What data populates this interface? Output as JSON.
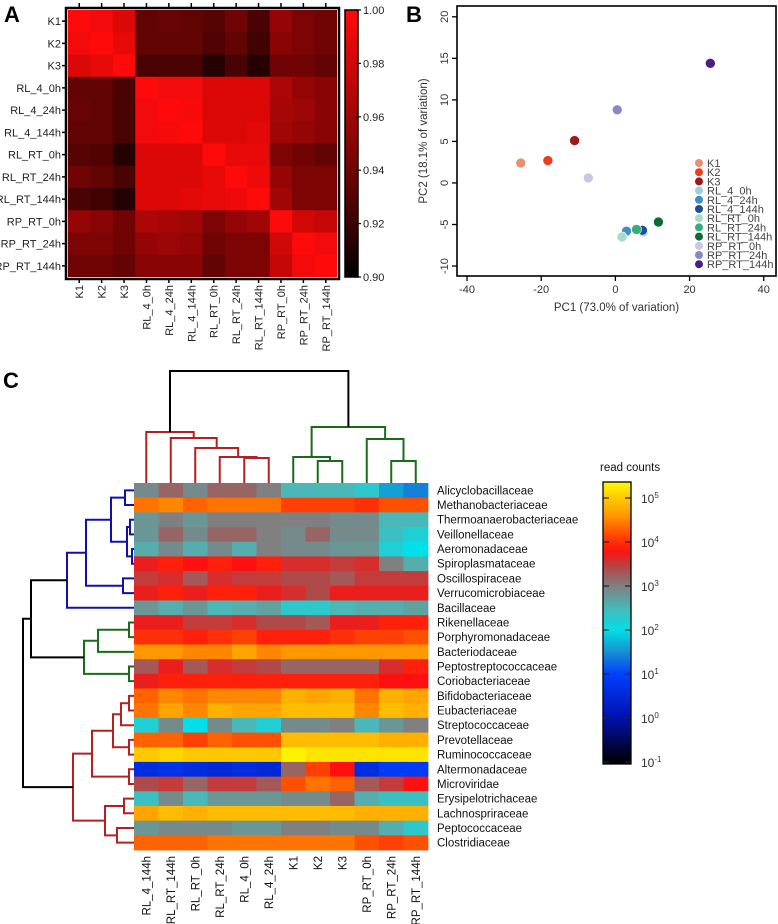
{
  "panels": {
    "a": "A",
    "b": "B",
    "c": "C"
  },
  "chart_data": [
    {
      "type": "heatmap",
      "panel": "A",
      "row_labels": [
        "K1",
        "K2",
        "K3",
        "RL_4_0h",
        "RL_4_24h",
        "RL_4_144h",
        "RL_RT_0h",
        "RL_RT_24h",
        "RL_RT_144h",
        "RP_RT_0h",
        "RP_RT_24h",
        "RP_RT_144h"
      ],
      "col_labels": [
        "K1",
        "K2",
        "K3",
        "RL_4_0h",
        "RL_4_24h",
        "RL_4_144h",
        "RL_RT_0h",
        "RL_RT_24h",
        "RL_RT_144h",
        "RP_RT_0h",
        "RP_RT_24h",
        "RP_RT_144h"
      ],
      "values": [
        [
          1.0,
          0.995,
          0.985,
          0.935,
          0.937,
          0.935,
          0.93,
          0.94,
          0.925,
          0.955,
          0.945,
          0.94
        ],
        [
          0.995,
          1.0,
          0.99,
          0.935,
          0.935,
          0.935,
          0.928,
          0.935,
          0.922,
          0.95,
          0.945,
          0.94
        ],
        [
          0.985,
          0.99,
          1.0,
          0.925,
          0.925,
          0.925,
          0.912,
          0.925,
          0.912,
          0.94,
          0.94,
          0.935
        ],
        [
          0.935,
          0.935,
          0.925,
          1.0,
          0.995,
          0.995,
          0.985,
          0.985,
          0.985,
          0.965,
          0.955,
          0.95
        ],
        [
          0.937,
          0.935,
          0.925,
          0.995,
          1.0,
          0.997,
          0.985,
          0.985,
          0.985,
          0.962,
          0.958,
          0.95
        ],
        [
          0.935,
          0.935,
          0.925,
          0.995,
          0.997,
          1.0,
          0.985,
          0.985,
          0.988,
          0.96,
          0.955,
          0.95
        ],
        [
          0.93,
          0.928,
          0.912,
          0.985,
          0.985,
          0.985,
          1.0,
          0.99,
          0.99,
          0.945,
          0.94,
          0.935
        ],
        [
          0.94,
          0.935,
          0.925,
          0.985,
          0.985,
          0.985,
          0.99,
          1.0,
          0.993,
          0.955,
          0.945,
          0.945
        ],
        [
          0.925,
          0.922,
          0.912,
          0.985,
          0.985,
          0.988,
          0.99,
          0.993,
          1.0,
          0.96,
          0.945,
          0.945
        ],
        [
          0.955,
          0.95,
          0.94,
          0.965,
          0.962,
          0.96,
          0.945,
          0.955,
          0.96,
          1.0,
          0.98,
          0.975
        ],
        [
          0.945,
          0.945,
          0.94,
          0.955,
          0.958,
          0.955,
          0.94,
          0.945,
          0.945,
          0.98,
          1.0,
          0.995
        ],
        [
          0.94,
          0.94,
          0.935,
          0.95,
          0.95,
          0.95,
          0.935,
          0.945,
          0.945,
          0.975,
          0.995,
          1.0
        ]
      ],
      "colorbar": {
        "range": [
          0.9,
          1.0
        ],
        "ticks": [
          {
            "value": 1.0,
            "label": "1.00"
          },
          {
            "value": 0.98,
            "label": "0.98"
          },
          {
            "value": 0.96,
            "label": "0.96"
          },
          {
            "value": 0.94,
            "label": "0.94"
          },
          {
            "value": 0.92,
            "label": "0.92"
          },
          {
            "value": 0.9,
            "label": "0.90"
          }
        ]
      },
      "colors": {
        "low": "#000000",
        "high": "#ff0000"
      }
    },
    {
      "type": "scatter",
      "panel": "B",
      "xlabel": "PC1 (73.0% of variation)",
      "ylabel": "PC2 (18.1% of variation)",
      "xlim": [
        -42.7,
        43.3
      ],
      "ylim": [
        -11.2,
        21.3
      ],
      "xticks": [
        {
          "value": -40,
          "label": "-40"
        },
        {
          "value": -20,
          "label": "-20"
        },
        {
          "value": 0,
          "label": "0"
        },
        {
          "value": 20,
          "label": "20"
        },
        {
          "value": 40,
          "label": "40"
        }
      ],
      "yticks": [
        {
          "value": -10,
          "label": "-10"
        },
        {
          "value": -5,
          "label": "-5"
        },
        {
          "value": 0,
          "label": "0"
        },
        {
          "value": 5,
          "label": "5"
        },
        {
          "value": 10,
          "label": "10"
        },
        {
          "value": 15,
          "label": "15"
        },
        {
          "value": 20,
          "label": "20"
        }
      ],
      "legend": "right",
      "points": [
        {
          "label": "K1",
          "x": -25.5,
          "y": 2.4,
          "color": "#e8906f"
        },
        {
          "label": "K2",
          "x": -18.2,
          "y": 2.7,
          "color": "#e8401f"
        },
        {
          "label": "K3",
          "x": -11.0,
          "y": 5.1,
          "color": "#a01818"
        },
        {
          "label": "RL_4_0h",
          "x": 7.5,
          "y": -5.9,
          "color": "#9ecfe0"
        },
        {
          "label": "RL_4_24h",
          "x": 3.0,
          "y": -5.8,
          "color": "#3d8fc4"
        },
        {
          "label": "RL_4_144h",
          "x": 7.3,
          "y": -5.7,
          "color": "#1a4f9a"
        },
        {
          "label": "RL_RT_0h",
          "x": 1.8,
          "y": -6.5,
          "color": "#a8dcc8"
        },
        {
          "label": "RL_RT_24h",
          "x": 5.7,
          "y": -5.6,
          "color": "#3aaa80"
        },
        {
          "label": "RL_RT_144h",
          "x": 11.6,
          "y": -4.7,
          "color": "#0f6a35"
        },
        {
          "label": "RP_RT_0h",
          "x": -7.3,
          "y": 0.6,
          "color": "#c8c8e4"
        },
        {
          "label": "RP_RT_24h",
          "x": 0.5,
          "y": 8.8,
          "color": "#8a88c4"
        },
        {
          "label": "RP_RT_144h",
          "x": 25.6,
          "y": 14.4,
          "color": "#4a1e88"
        }
      ]
    },
    {
      "type": "heatmap",
      "panel": "C",
      "value_scale": "log10(read counts)",
      "row_labels": [
        "Alicyclobacillaceae",
        "Methanobacteriaceae",
        "Thermoanaerobacteriaceae",
        "Veillonellaceae",
        "Aeromonadaceae",
        "Spiroplasmataceae",
        "Oscillospiraceae",
        "Verrucomicrobiaceae",
        "Bacillaceae",
        "Rikenellaceae",
        "Porphyromonadaceae",
        "Bacteriodaceae",
        "Peptostreptococcaceae",
        "Coriobacteriaceae",
        "Bifidobacteriaceae",
        "Eubacteriaceae",
        "Streptococcaceae",
        "Prevotellaceae",
        "Ruminococcaceae",
        "Altermonadaceae",
        "Microviridae",
        "Erysipelotrichaceae",
        "Lachnospriraceae",
        "Peptococcaceae",
        "Clostridiaceae"
      ],
      "col_labels": [
        "RL_4_144h",
        "RL_RT_144h",
        "RL_RT_0h",
        "RL_RT_24h",
        "RL_4_0h",
        "RL_4_24h",
        "K1",
        "K2",
        "K3",
        "RP_RT_0h",
        "RP_RT_24h",
        "RP_RT_144h"
      ],
      "values": [
        [
          2.9,
          3.2,
          2.9,
          3.2,
          3.2,
          3.0,
          2.5,
          2.5,
          2.5,
          2.3,
          1.6,
          1.4
        ],
        [
          4.4,
          4.5,
          4.3,
          4.4,
          4.4,
          4.4,
          4.1,
          4.1,
          4.1,
          4.0,
          4.2,
          4.2
        ],
        [
          2.8,
          3.0,
          2.8,
          3.0,
          3.0,
          3.0,
          3.0,
          3.0,
          2.9,
          2.9,
          2.5,
          2.5
        ],
        [
          2.8,
          3.2,
          2.9,
          3.2,
          3.2,
          3.0,
          2.9,
          3.2,
          2.9,
          2.9,
          2.4,
          2.2
        ],
        [
          2.6,
          2.9,
          2.6,
          2.9,
          2.6,
          3.0,
          2.9,
          2.9,
          2.8,
          2.8,
          2.2,
          2.0
        ],
        [
          3.7,
          3.9,
          3.8,
          3.9,
          3.8,
          3.9,
          3.6,
          3.6,
          3.5,
          3.6,
          3.0,
          2.6
        ],
        [
          3.5,
          3.6,
          3.3,
          3.6,
          3.5,
          3.5,
          3.4,
          3.4,
          3.3,
          3.5,
          3.5,
          3.5
        ],
        [
          3.7,
          3.9,
          3.7,
          3.9,
          3.9,
          3.7,
          3.6,
          3.4,
          3.7,
          3.7,
          3.7,
          3.7
        ],
        [
          2.8,
          2.6,
          2.8,
          2.5,
          2.6,
          2.7,
          2.3,
          2.3,
          2.5,
          2.6,
          2.6,
          2.7
        ],
        [
          3.7,
          3.7,
          3.5,
          3.5,
          3.6,
          3.4,
          3.4,
          3.3,
          3.7,
          3.7,
          3.9,
          3.9
        ],
        [
          4.0,
          4.0,
          3.9,
          4.0,
          4.1,
          3.9,
          3.9,
          3.9,
          4.0,
          4.1,
          4.1,
          4.2
        ],
        [
          4.6,
          4.6,
          4.5,
          4.5,
          4.7,
          4.5,
          4.6,
          4.6,
          4.6,
          4.6,
          4.6,
          4.6
        ],
        [
          3.3,
          3.7,
          3.3,
          3.6,
          3.5,
          3.4,
          3.2,
          3.2,
          3.2,
          3.2,
          3.6,
          3.9
        ],
        [
          3.7,
          3.9,
          3.9,
          3.9,
          3.9,
          3.9,
          3.9,
          3.9,
          3.9,
          3.9,
          3.8,
          3.8
        ],
        [
          4.3,
          4.5,
          4.4,
          4.5,
          4.5,
          4.5,
          4.8,
          4.7,
          4.8,
          4.4,
          4.8,
          4.7
        ],
        [
          4.4,
          4.7,
          4.5,
          4.8,
          4.7,
          4.7,
          4.9,
          4.9,
          4.9,
          4.5,
          4.9,
          4.8
        ],
        [
          2.2,
          2.9,
          2.0,
          2.9,
          2.5,
          2.2,
          2.9,
          2.9,
          3.0,
          2.5,
          2.8,
          3.0
        ],
        [
          4.3,
          4.3,
          4.1,
          4.3,
          4.2,
          4.2,
          4.9,
          4.9,
          4.9,
          4.9,
          4.8,
          4.8
        ],
        [
          5.0,
          5.1,
          5.0,
          5.0,
          5.0,
          5.0,
          5.3,
          5.2,
          5.2,
          5.2,
          5.2,
          5.2
        ],
        [
          0.6,
          0.7,
          0.6,
          0.5,
          0.6,
          0.5,
          3.2,
          4.1,
          3.8,
          0.6,
          0.9,
          0.9
        ],
        [
          3.4,
          3.5,
          3.2,
          3.5,
          3.5,
          3.3,
          4.2,
          4.4,
          4.3,
          3.3,
          3.5,
          3.8
        ],
        [
          2.4,
          2.9,
          2.5,
          2.8,
          2.8,
          2.8,
          2.9,
          2.9,
          3.2,
          2.6,
          2.4,
          2.4
        ],
        [
          4.7,
          4.9,
          4.8,
          4.9,
          4.9,
          4.9,
          4.9,
          4.9,
          4.9,
          4.8,
          4.8,
          4.8
        ],
        [
          2.8,
          2.9,
          2.9,
          2.9,
          2.8,
          2.8,
          3.0,
          3.0,
          2.9,
          2.9,
          2.6,
          2.3
        ],
        [
          4.3,
          4.3,
          4.3,
          4.4,
          4.4,
          4.4,
          4.4,
          4.4,
          4.4,
          4.2,
          4.1,
          4.2
        ]
      ],
      "colorbar": {
        "title": "read counts",
        "ticks": [
          {
            "value": 5,
            "base": "10",
            "exp": "5"
          },
          {
            "value": 4,
            "base": "10",
            "exp": "4"
          },
          {
            "value": 3,
            "base": "10",
            "exp": "3"
          },
          {
            "value": 2,
            "base": "10",
            "exp": "2"
          },
          {
            "value": 1,
            "base": "10",
            "exp": "1"
          },
          {
            "value": 0,
            "base": "10",
            "exp": "0"
          },
          {
            "value": -1,
            "base": "10",
            "exp": "-1"
          }
        ]
      },
      "dendrogram_colors": {
        "root": "#000000",
        "cluster_red": "#b22222",
        "cluster_green": "#1a6b1a",
        "cluster_blue": "#1010b0"
      }
    }
  ]
}
